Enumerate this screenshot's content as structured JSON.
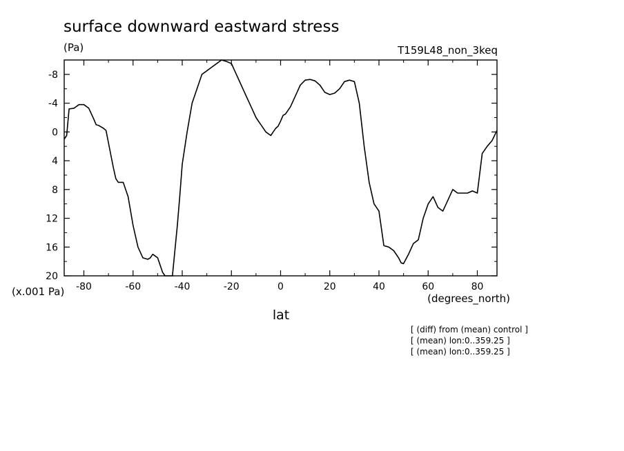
{
  "chart_data": {
    "type": "line",
    "title": "surface downward eastward stress",
    "units": "(Pa)",
    "run_label": "T159L48_non_3keq",
    "xlabel": "lat",
    "x_units": "(degrees_north)",
    "y_scale_label": "(x.001 Pa)",
    "xlim": [
      -88,
      88
    ],
    "ylim": [
      20,
      -10
    ],
    "y_inverted": true,
    "grid": false,
    "x_ticks": [
      -80,
      -60,
      -40,
      -20,
      0,
      20,
      40,
      60,
      80
    ],
    "x_tick_labels": [
      "-80",
      "-60",
      "-40",
      "-20",
      "0",
      "20",
      "40",
      "60",
      "80"
    ],
    "y_ticks": [
      -8,
      -4,
      0,
      4,
      8,
      12,
      16,
      20
    ],
    "y_tick_labels": [
      "-8",
      "-4",
      "0",
      "4",
      "8",
      "12",
      "16",
      "20"
    ],
    "series": [
      {
        "x": [
          -88,
          -87,
          -86,
          -84,
          -82,
          -80,
          -78,
          -76,
          -75,
          -74,
          -72,
          -71,
          -70,
          -68,
          -67,
          -66,
          -64,
          -62,
          -60,
          -58,
          -56,
          -54,
          -53,
          -52,
          -50,
          -48,
          -47,
          -46,
          -44,
          -42,
          -41,
          -40,
          -38,
          -36,
          -34,
          -32,
          -30,
          -28,
          -26,
          -24,
          -22,
          -20,
          -18,
          -16,
          -14,
          -12,
          -10,
          -8,
          -6,
          -4,
          -3,
          -2,
          -1,
          0,
          1,
          2,
          4,
          6,
          8,
          10,
          12,
          14,
          16,
          18,
          20,
          22,
          24,
          26,
          28,
          30,
          32,
          34,
          36,
          38,
          40,
          42,
          44,
          46,
          48,
          49,
          50,
          52,
          54,
          56,
          58,
          60,
          62,
          64,
          66,
          68,
          70,
          72,
          74,
          76,
          78,
          80,
          82,
          84,
          86,
          88
        ],
        "y": [
          1,
          0.5,
          -3.2,
          -3.3,
          -3.8,
          -3.8,
          -3.3,
          -1.8,
          -1,
          -0.9,
          -0.5,
          -0.2,
          1.5,
          5,
          6.5,
          7,
          7,
          9,
          13,
          16,
          17.5,
          17.7,
          17.5,
          17,
          17.5,
          19.5,
          20,
          20.5,
          20,
          13,
          9,
          4.5,
          0,
          -4,
          -6,
          -8,
          -8.5,
          -9,
          -9.5,
          -10,
          -9.8,
          -9.5,
          -8,
          -6.5,
          -5,
          -3.5,
          -2,
          -1,
          0,
          0.5,
          0,
          -0.5,
          -0.8,
          -1.5,
          -2.3,
          -2.5,
          -3.5,
          -5,
          -6.5,
          -7.2,
          -7.3,
          -7.1,
          -6.5,
          -5.5,
          -5.2,
          -5.4,
          -6,
          -7,
          -7.2,
          -7,
          -4,
          2,
          7,
          10,
          11,
          15.8,
          16,
          16.5,
          17.5,
          18.2,
          18.3,
          17,
          15.5,
          15,
          12,
          10,
          9,
          10.5,
          11,
          9.5,
          8,
          8.5,
          8.5,
          8.5,
          8.2,
          8.5,
          3,
          2,
          1.2,
          -0.2
        ]
      }
    ]
  },
  "annotations": [
    "[ (diff) from (mean) control ]",
    "[ (mean) lon:0..359.25 ]",
    "[ (mean) lon:0..359.25 ]"
  ]
}
